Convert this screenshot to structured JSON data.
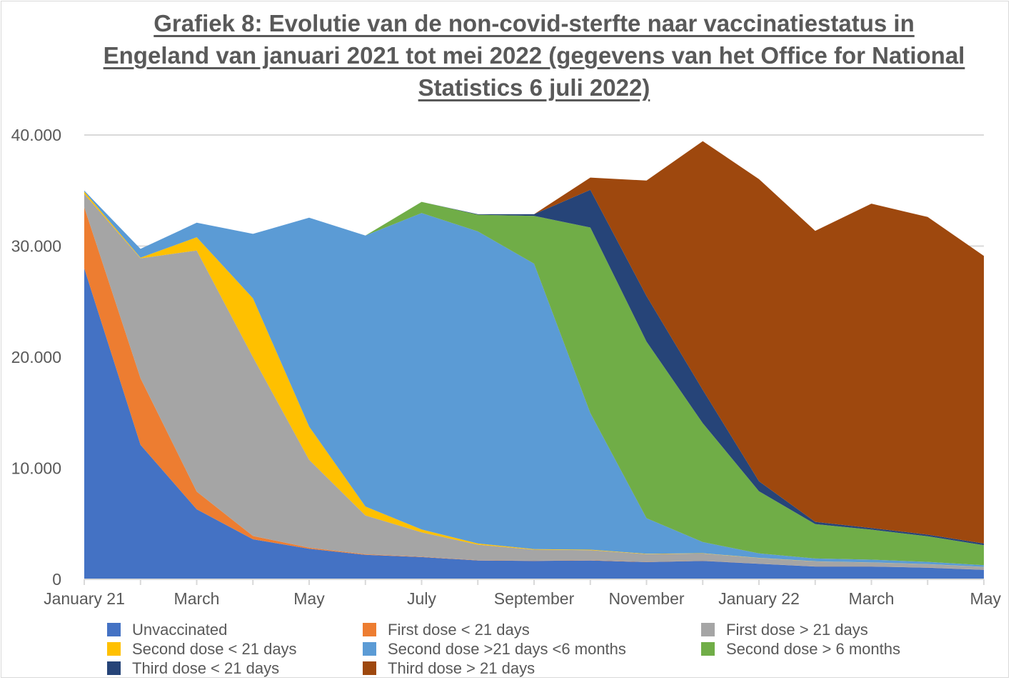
{
  "chart_data": {
    "type": "area",
    "stacked": true,
    "title": "Grafiek 8: Evolutie van de non-covid-sterfte naar vaccinatiestatus in Engeland van januari 2021 tot mei 2022 (gegevens van het Office for National Statistics 6 juli 2022)",
    "x": [
      "Jan 2021",
      "Feb 2021",
      "Mar 2021",
      "Apr 2021",
      "May 2021",
      "Jun 2021",
      "Jul 2021",
      "Aug 2021",
      "Sep 2021",
      "Oct 2021",
      "Nov 2021",
      "Dec 2021",
      "Jan 2022",
      "Feb 2022",
      "Mar 2022",
      "Apr 2022",
      "May 2022"
    ],
    "x_tick_labels": [
      "January 21",
      "",
      "March",
      "",
      "May",
      "",
      "July",
      "",
      "September",
      "",
      "November",
      "",
      "January 22",
      "",
      "March",
      "",
      "May"
    ],
    "y_ticks": [
      "0",
      "10.000",
      "20.000",
      "30.000",
      "40.000"
    ],
    "ylim": [
      0,
      40000
    ],
    "grid": true,
    "legend_position": "bottom",
    "series": [
      {
        "name": "Unvaccinated",
        "color": "#4472c4",
        "values": [
          28000,
          12100,
          6300,
          3600,
          2750,
          2200,
          2000,
          1700,
          1650,
          1700,
          1550,
          1650,
          1400,
          1150,
          1150,
          1050,
          850
        ]
      },
      {
        "name": "First dose < 21 days",
        "color": "#ed7d31",
        "values": [
          5500,
          6000,
          1600,
          300,
          100,
          50,
          30,
          20,
          20,
          20,
          20,
          20,
          10,
          10,
          10,
          10,
          10
        ]
      },
      {
        "name": "First dose > 21 days",
        "color": "#a5a5a5",
        "values": [
          1200,
          10800,
          21700,
          16100,
          7900,
          3500,
          2200,
          1400,
          1000,
          900,
          700,
          650,
          500,
          450,
          350,
          300,
          250
        ]
      },
      {
        "name": "Second dose < 21 days",
        "color": "#ffc000",
        "values": [
          200,
          50,
          1200,
          5300,
          3000,
          800,
          250,
          100,
          50,
          50,
          30,
          30,
          20,
          10,
          10,
          10,
          10
        ]
      },
      {
        "name": "Second dose >21 days <6 months",
        "color": "#5b9bd5",
        "values": [
          100,
          800,
          1300,
          5800,
          18800,
          24400,
          28500,
          28100,
          25700,
          12300,
          3200,
          1000,
          400,
          250,
          250,
          200,
          150
        ]
      },
      {
        "name": "Second dose > 6 months",
        "color": "#70ad47",
        "values": [
          0,
          0,
          0,
          0,
          0,
          0,
          1000,
          1500,
          4300,
          16700,
          15900,
          10700,
          5600,
          3100,
          2700,
          2300,
          1800
        ]
      },
      {
        "name": "Third dose < 21 days",
        "color": "#264478",
        "values": [
          0,
          0,
          0,
          0,
          0,
          0,
          0,
          50,
          150,
          3400,
          4100,
          3000,
          900,
          200,
          150,
          150,
          150
        ]
      },
      {
        "name": "Third dose >  21 days",
        "color": "#9e480e",
        "values": [
          0,
          0,
          0,
          0,
          0,
          0,
          0,
          0,
          0,
          1100,
          10400,
          22400,
          27200,
          26200,
          29200,
          28600,
          25900
        ]
      }
    ]
  }
}
